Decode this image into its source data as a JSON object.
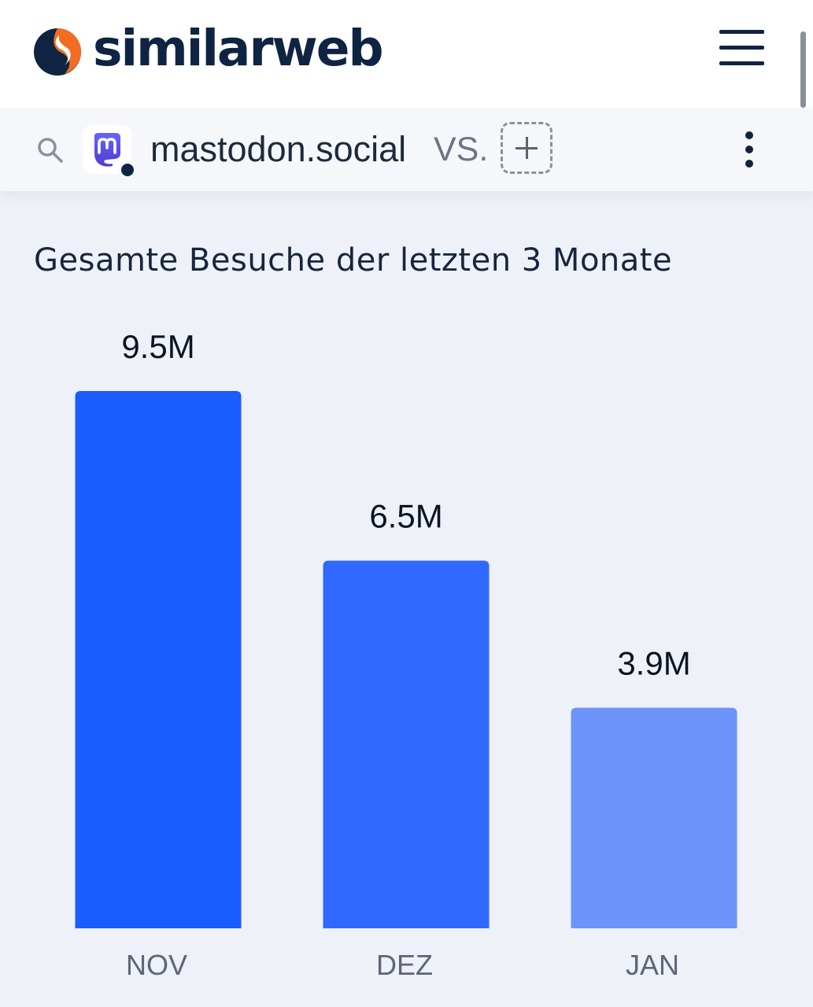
{
  "header": {
    "brand": "similarweb",
    "logo_icon": "similarweb-logo-icon",
    "menu_icon": "hamburger-menu-icon"
  },
  "compare_bar": {
    "search_icon": "search-icon",
    "site_icon": "mastodon-icon",
    "site_name": "mastodon.social",
    "vs_label": "VS.",
    "add_icon": "plus-icon",
    "more_icon": "more-vertical-icon"
  },
  "colors": {
    "brand_dark": "#0f2442",
    "logo_orange": "#f26d21",
    "mastodon_purple": "#6364ff",
    "bar_colors": [
      "#1b5cff",
      "#3069ff",
      "#6d94fb"
    ]
  },
  "chart_data": {
    "type": "bar",
    "title": "Gesamte Besuche der letzten 3 Monate",
    "categories": [
      "NOV",
      "DEZ",
      "JAN"
    ],
    "values": [
      9.5,
      6.5,
      3.9
    ],
    "value_labels": [
      "9.5M",
      "6.5M",
      "3.9M"
    ],
    "unit": "M",
    "ylim": [
      0,
      9.5
    ],
    "grid": false,
    "legend": "none"
  }
}
